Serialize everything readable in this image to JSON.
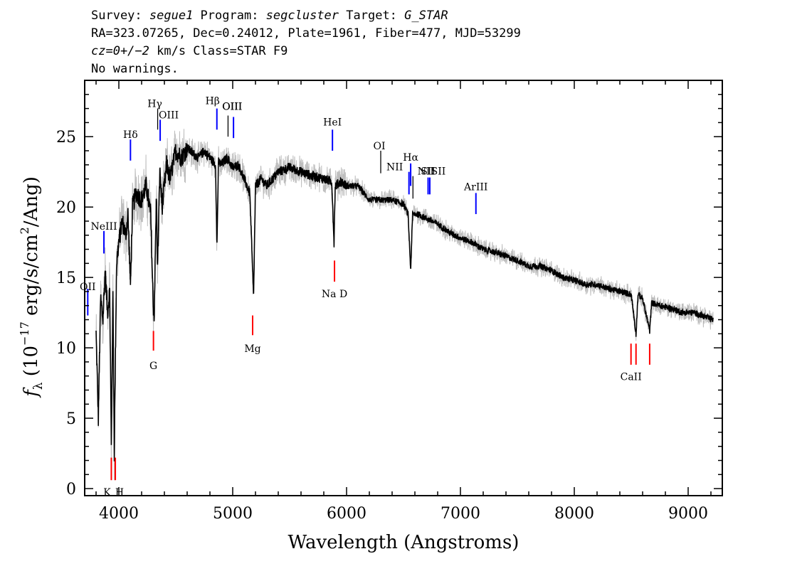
{
  "header": {
    "line1": {
      "survey_label": "Survey: ",
      "survey": "segue1",
      "program_label": " Program: ",
      "program": "segcluster",
      "target_label": " Target: ",
      "target": "G_STAR"
    },
    "line2": "RA=323.07265, Dec=0.24012, Plate=1961, Fiber=477, MJD=53299",
    "line3": {
      "cz": "cz=0+/−2",
      "rest": " km/s Class=STAR F9"
    },
    "line4": "No warnings."
  },
  "colors": {
    "flux": "#000000",
    "error_band": "#bdbdbd",
    "emission": "#0000ff",
    "absorption": "#ff0000",
    "sky": "#000000"
  },
  "chart_data": {
    "type": "line",
    "xlabel": "Wavelength (Angstroms)",
    "ylabel": {
      "f": "f",
      "sub": "λ",
      "pre": " (10",
      "sup": "−17",
      "mid": " erg/s/cm",
      "sup2": "2",
      "post": "/Ang)"
    },
    "xlim": [
      3700,
      9300
    ],
    "ylim": [
      -0.5,
      29
    ],
    "xticks": [
      4000,
      5000,
      6000,
      7000,
      8000,
      9000
    ],
    "xtick_labels": [
      "4000",
      "5000",
      "6000",
      "7000",
      "8000",
      "9000"
    ],
    "yticks": [
      0,
      5,
      10,
      15,
      20,
      25
    ],
    "ytick_labels": [
      "0",
      "5",
      "10",
      "15",
      "20",
      "25"
    ],
    "grid": false,
    "series": [
      {
        "role": "flux",
        "x": [
          3800,
          3820,
          3840,
          3860,
          3880,
          3900,
          3920,
          3934,
          3948,
          3960,
          3968,
          3980,
          4000,
          4030,
          4060,
          4080,
          4102,
          4120,
          4150,
          4200,
          4240,
          4280,
          4300,
          4310,
          4330,
          4340,
          4360,
          4380,
          4420,
          4450,
          4500,
          4550,
          4600,
          4650,
          4700,
          4750,
          4800,
          4850,
          4861,
          4875,
          4900,
          4950,
          5000,
          5050,
          5100,
          5150,
          5170,
          5183,
          5200,
          5250,
          5300,
          5400,
          5500,
          5600,
          5700,
          5800,
          5870,
          5890,
          5900,
          5950,
          6000,
          6100,
          6200,
          6300,
          6400,
          6500,
          6540,
          6563,
          6580,
          6620,
          6700,
          6800,
          6900,
          7000,
          7100,
          7200,
          7300,
          7400,
          7500,
          7600,
          7700,
          7800,
          7900,
          8000,
          8100,
          8200,
          8300,
          8400,
          8500,
          8542,
          8560,
          8600,
          8662,
          8680,
          8750,
          8850,
          8950,
          9050,
          9150,
          9220
        ],
        "y": [
          11.0,
          5.0,
          13.5,
          12.0,
          15.5,
          12.5,
          14.0,
          3.0,
          14.0,
          2.5,
          8.0,
          16.0,
          17.5,
          19.0,
          18.0,
          19.5,
          14.5,
          20.0,
          21.0,
          20.5,
          21.5,
          19.5,
          13.5,
          12.0,
          21.0,
          15.5,
          22.5,
          20.0,
          23.0,
          22.0,
          24.0,
          23.5,
          24.2,
          23.8,
          23.5,
          24.0,
          23.5,
          23.0,
          17.0,
          23.2,
          23.0,
          23.5,
          22.8,
          23.0,
          22.0,
          21.0,
          16.5,
          13.5,
          21.5,
          22.0,
          21.5,
          22.5,
          22.8,
          22.5,
          22.2,
          22.0,
          21.8,
          17.5,
          21.5,
          21.8,
          21.5,
          21.5,
          20.5,
          20.5,
          20.5,
          20.2,
          19.5,
          15.5,
          19.5,
          19.5,
          19.2,
          18.8,
          18.2,
          17.8,
          17.5,
          17.0,
          16.8,
          16.5,
          16.2,
          15.8,
          15.8,
          15.5,
          15.0,
          14.8,
          14.5,
          14.5,
          14.2,
          14.0,
          13.8,
          11.0,
          13.8,
          13.5,
          11.2,
          13.2,
          13.0,
          12.8,
          12.5,
          12.5,
          12.2,
          12.0
        ]
      }
    ],
    "lines": [
      {
        "label": "OII",
        "wave": 3727,
        "type": "emission",
        "y_top": 14.2,
        "y_bottom": 12.3,
        "label_y": 14.1,
        "label_dx": 0
      },
      {
        "label": "NeIII",
        "wave": 3869,
        "type": "emission",
        "y_top": 18.3,
        "y_bottom": 16.7,
        "label_y": 18.4,
        "label_dx": 0
      },
      {
        "label": "Hδ",
        "wave": 4102,
        "type": "emission",
        "y_top": 24.8,
        "y_bottom": 23.3,
        "label_y": 24.9,
        "label_dx": 0
      },
      {
        "label": "Hγ",
        "wave": 4341,
        "type": "sky",
        "y_top": 27.0,
        "y_bottom": 25.5,
        "label_y": 27.1,
        "label_dx": -4
      },
      {
        "label": "OIII",
        "wave": 4363,
        "type": "emission",
        "y_top": 26.2,
        "y_bottom": 24.7,
        "label_y": 26.3,
        "label_dx": 12
      },
      {
        "label": "Hβ",
        "wave": 4861,
        "type": "emission",
        "y_top": 27.0,
        "y_bottom": 25.5,
        "label_y": 27.3,
        "label_dx": -6
      },
      {
        "label": "OIII",
        "wave": 4959,
        "type": "sky",
        "y_top": 26.5,
        "y_bottom": 25.0,
        "label_y": 26.9,
        "label_dx": 6
      },
      {
        "label": "OIII",
        "wave": 5007,
        "type": "emission",
        "y_top": 26.4,
        "y_bottom": 24.9,
        "label_y": 26.9,
        "label_dx": -2
      },
      {
        "label": "HeI",
        "wave": 5876,
        "type": "emission",
        "y_top": 25.5,
        "y_bottom": 24.0,
        "label_y": 25.8,
        "label_dx": 0
      },
      {
        "label": "OI",
        "wave": 6300,
        "type": "sky",
        "y_top": 24.0,
        "y_bottom": 22.4,
        "label_y": 24.1,
        "label_dx": -2
      },
      {
        "label": "NII",
        "wave": 6548,
        "type": "emission",
        "y_top": 22.5,
        "y_bottom": 20.9,
        "label_y": 22.6,
        "label_dx": -20
      },
      {
        "label": "Hα",
        "wave": 6563,
        "type": "emission",
        "y_top": 23.1,
        "y_bottom": 21.5,
        "label_y": 23.3,
        "label_dx": 0
      },
      {
        "label": "NII",
        "wave": 6583,
        "type": "sky",
        "y_top": 22.2,
        "y_bottom": 20.6,
        "label_y": 22.3,
        "label_dx": 18
      },
      {
        "label": "SII",
        "wave": 6716,
        "type": "emission",
        "y_top": 22.1,
        "y_bottom": 20.9,
        "label_y": 22.3,
        "label_dx": 0
      },
      {
        "label": "SII",
        "wave": 6731,
        "type": "emission",
        "y_top": 22.1,
        "y_bottom": 20.9,
        "label_y": 22.3,
        "label_dx": 12
      },
      {
        "label": "ArIII",
        "wave": 7136,
        "type": "emission",
        "y_top": 21.0,
        "y_bottom": 19.5,
        "label_y": 21.2,
        "label_dx": 0
      },
      {
        "label": "K",
        "wave": 3934,
        "type": "absorption",
        "y_top": 2.2,
        "y_bottom": 0.6,
        "label_y": -0.5,
        "label_dx": -6
      },
      {
        "label": "H",
        "wave": 3969,
        "type": "absorption",
        "y_top": 2.2,
        "y_bottom": 0.6,
        "label_y": -0.5,
        "label_dx": 6
      },
      {
        "label": "G",
        "wave": 4304,
        "type": "absorption",
        "y_top": 11.2,
        "y_bottom": 9.8,
        "label_y": 8.5,
        "label_dx": 0
      },
      {
        "label": "Mg",
        "wave": 5175,
        "type": "absorption",
        "y_top": 12.3,
        "y_bottom": 10.9,
        "label_y": 9.7,
        "label_dx": 0
      },
      {
        "label": "Na D",
        "wave": 5894,
        "type": "absorption",
        "y_top": 16.2,
        "y_bottom": 14.7,
        "label_y": 13.6,
        "label_dx": 0
      },
      {
        "label": "CaII",
        "wave": 8498,
        "type": "absorption",
        "y_top": 10.3,
        "y_bottom": 8.8,
        "label_y": 7.7,
        "label_dx": 0
      },
      {
        "label": "",
        "wave": 8542,
        "type": "absorption",
        "y_top": 10.3,
        "y_bottom": 8.8
      },
      {
        "label": "",
        "wave": 8662,
        "type": "absorption",
        "y_top": 10.3,
        "y_bottom": 8.8
      }
    ]
  }
}
